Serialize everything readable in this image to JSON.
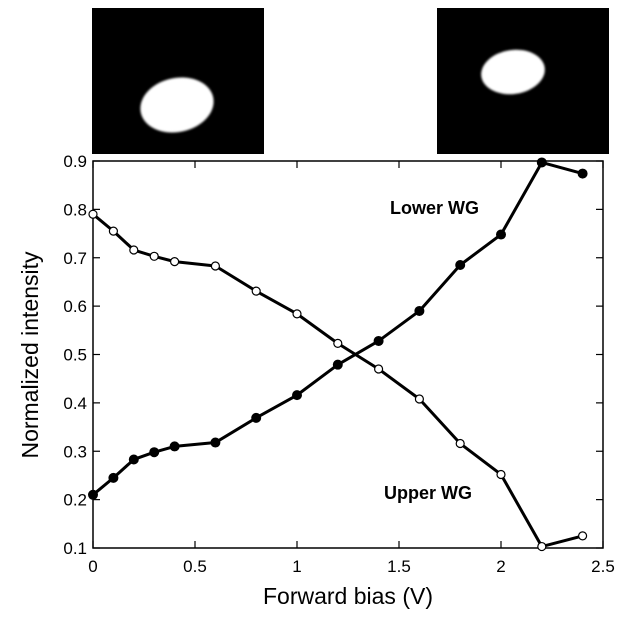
{
  "chart_data": {
    "type": "line",
    "xlabel": "Forward bias (V)",
    "ylabel": "Normalized intensity",
    "xlim": [
      0,
      2.5
    ],
    "ylim": [
      0.1,
      0.9
    ],
    "xticks": [
      "0",
      "0.5",
      "1",
      "1.5",
      "2",
      "2.5"
    ],
    "yticks": [
      "0.1",
      "0.2",
      "0.3",
      "0.4",
      "0.5",
      "0.6",
      "0.7",
      "0.8",
      "0.9"
    ],
    "grid": false,
    "series": [
      {
        "name": "Lower WG",
        "marker": "filled-circle",
        "color": "#000000",
        "points": [
          [
            0,
            0.21
          ],
          [
            0.1,
            0.245
          ],
          [
            0.2,
            0.283
          ],
          [
            0.3,
            0.298
          ],
          [
            0.4,
            0.31
          ],
          [
            0.6,
            0.318
          ],
          [
            0.8,
            0.369
          ],
          [
            1.0,
            0.416
          ],
          [
            1.2,
            0.479
          ],
          [
            1.4,
            0.528
          ],
          [
            1.6,
            0.59
          ],
          [
            1.8,
            0.685
          ],
          [
            2.0,
            0.748
          ],
          [
            2.2,
            0.897
          ],
          [
            2.4,
            0.874
          ]
        ]
      },
      {
        "name": "Upper WG",
        "marker": "open-circle",
        "color": "#000000",
        "points": [
          [
            0,
            0.79
          ],
          [
            0.1,
            0.755
          ],
          [
            0.2,
            0.716
          ],
          [
            0.3,
            0.703
          ],
          [
            0.4,
            0.692
          ],
          [
            0.6,
            0.683
          ],
          [
            0.8,
            0.631
          ],
          [
            1.0,
            0.584
          ],
          [
            1.2,
            0.523
          ],
          [
            1.4,
            0.47
          ],
          [
            1.6,
            0.408
          ],
          [
            1.8,
            0.316
          ],
          [
            2.0,
            0.252
          ],
          [
            2.2,
            0.103
          ],
          [
            2.4,
            0.125
          ]
        ]
      }
    ],
    "insets": [
      "beam-profile-image-left",
      "beam-profile-image-right"
    ]
  }
}
